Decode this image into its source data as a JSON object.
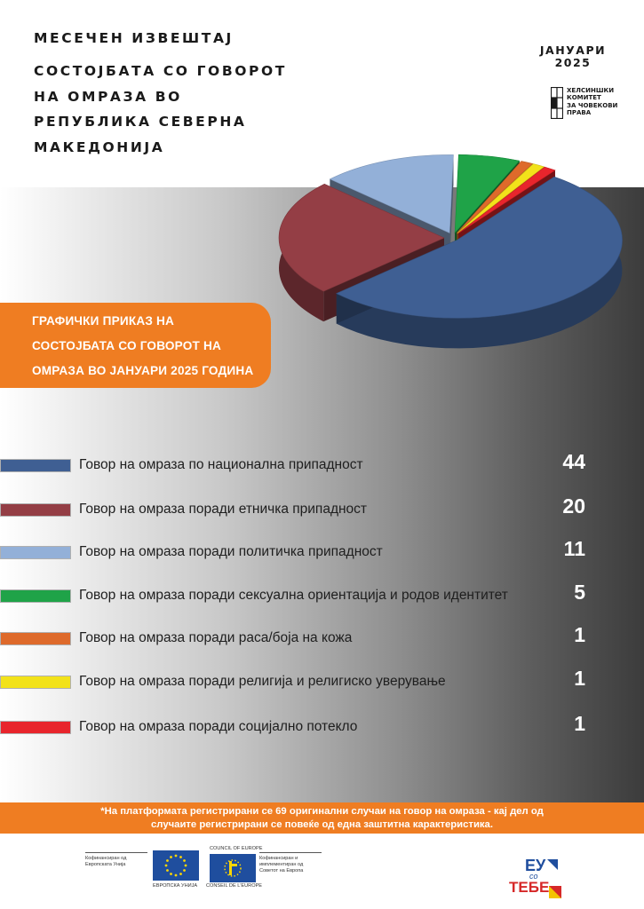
{
  "header": {
    "supertitle": "МЕСЕЧЕН ИЗВЕШТАЈ",
    "title_lines": [
      "СОСТОЈБАТА СО ГОВОРОТ",
      "НА ОМРАЗА ВО",
      "РЕПУБЛИКА СЕВЕРНА",
      "МАКЕДОНИЈА"
    ],
    "month": "ЈАНУАРИ",
    "year": "2025"
  },
  "org_logo": {
    "icon": "helsinki-committee-logo-icon",
    "lines": [
      "ХЕЛСИНШКИ",
      "КОМИТЕТ",
      "ЗА ЧОВЕКОВИ",
      "ПРАВА"
    ]
  },
  "banner": {
    "lines": [
      "ГРАФИЧКИ ПРИКАЗ НА",
      "СОСТОЈБАТА СО ГОВОРОТ НА",
      "ОМРАЗА ВО ЈАНУАРИ 2025 ГОДИНА"
    ]
  },
  "chart_data": {
    "type": "pie",
    "title": "",
    "categories": [
      "Говор на омраза по национална припадност",
      "Говор на омраза поради етничка припадност",
      "Говор на омраза поради политичка припадност",
      "Говор на омраза поради сексуална ориентација и родов идентитет",
      "Говор на омраза поради раса/боја на кожа",
      "Говор на омраза поради религија и религиско уверување",
      "Говор на омраза поради социјално потекло"
    ],
    "values": [
      44,
      20,
      11,
      5,
      1,
      1,
      1
    ],
    "colors": [
      "#3f5f93",
      "#943e45",
      "#93b0d8",
      "#1fa348",
      "#de6a2b",
      "#f2e21a",
      "#e8252c"
    ],
    "style": "3d-exploded",
    "legend_position": "below"
  },
  "footnote": {
    "lines": [
      "*На платформата регистрирани се 69 оригинални случаи на говор на омраза - кај дел од",
      "случаите регистрирани се повеќе од една заштитна карактеристика."
    ]
  },
  "footer": {
    "eu_funding": [
      "Кофинансиран од",
      "Европската Унија"
    ],
    "eu_caption": "ЕВРОПСКА УНИЈА",
    "coe_top": "COUNCIL OF EUROPE",
    "coe_caption": "CONSEIL DE L'EUROPE",
    "coe_funding": [
      "Кофинансиран и",
      "имплементиран од",
      "Советот на Европа"
    ],
    "eu_logo_icon": "eu-flag-icon",
    "coe_logo_icon": "council-of-europe-flag-icon",
    "campaign_logo": {
      "icon": "eu-so-tebe-logo-icon",
      "top": "ЕУ",
      "middle": "со",
      "bottom": "ТЕБЕ"
    }
  }
}
